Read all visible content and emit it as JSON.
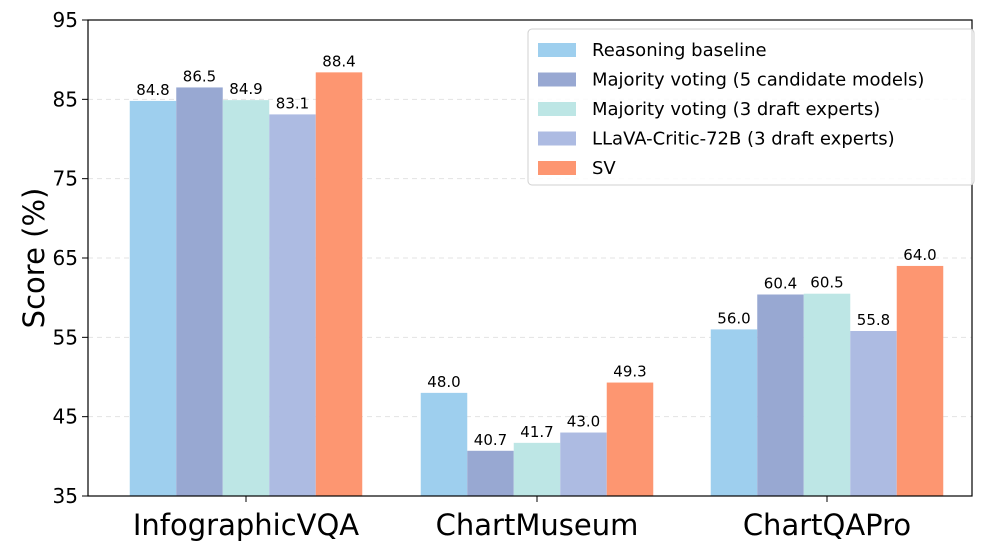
{
  "chart_data": {
    "type": "bar",
    "title": "",
    "xlabel": "",
    "ylabel": "Score (%)",
    "ylim": [
      35,
      95
    ],
    "yticks": [
      "35",
      "45",
      "55",
      "65",
      "75",
      "85",
      "95"
    ],
    "grid": true,
    "legend_position": "top-right",
    "categories": [
      "InfographicVQA",
      "ChartMuseum",
      "ChartQAPro"
    ],
    "series": [
      {
        "name": "Reasoning baseline",
        "color": "#9ecfee",
        "values": [
          84.8,
          48.0,
          56.0
        ],
        "labels": [
          "84.8",
          "48.0",
          "56.0"
        ]
      },
      {
        "name": "Majority voting (5 candidate models)",
        "color": "#98a8d2",
        "values": [
          86.5,
          40.7,
          60.4
        ],
        "labels": [
          "86.5",
          "40.7",
          "60.4"
        ]
      },
      {
        "name": "Majority voting (3 draft experts)",
        "color": "#bde6e5",
        "values": [
          84.9,
          41.7,
          60.5
        ],
        "labels": [
          "84.9",
          "41.7",
          "60.5"
        ]
      },
      {
        "name": "LLaVA-Critic-72B (3 draft experts)",
        "color": "#adbbe2",
        "values": [
          83.1,
          43.0,
          55.8
        ],
        "labels": [
          "83.1",
          "43.0",
          "55.8"
        ]
      },
      {
        "name": "SV",
        "color": "#fd9671",
        "values": [
          88.4,
          49.3,
          64.0
        ],
        "labels": [
          "88.4",
          "49.3",
          "64.0"
        ]
      }
    ]
  }
}
